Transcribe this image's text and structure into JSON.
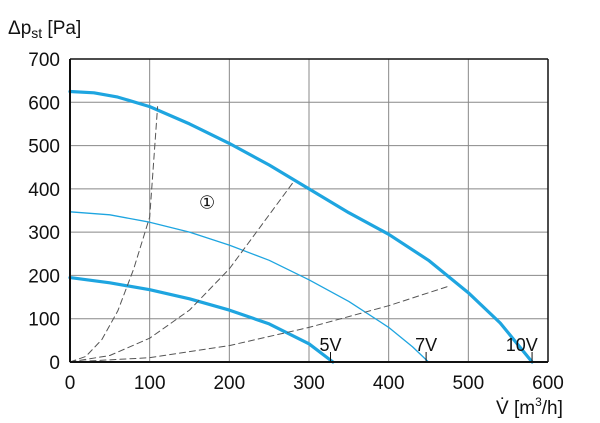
{
  "chart_data": {
    "type": "line",
    "ylabel": {
      "main": "Δp",
      "sub": "st",
      "unit": " [Pa]"
    },
    "xlabel": {
      "main": "V̇ [m",
      "sup": "3",
      "unit": "/h]"
    },
    "xlim": [
      0,
      600
    ],
    "ylim": [
      0,
      700
    ],
    "xticks": [
      0,
      100,
      200,
      300,
      400,
      500,
      600
    ],
    "yticks": [
      0,
      100,
      200,
      300,
      400,
      500,
      600,
      700
    ],
    "grid": true,
    "colors": {
      "fan_curve": "#1ea5e0",
      "system_curve": "#555555",
      "axis": "#111111",
      "grid": "#888888"
    },
    "series": [
      {
        "name": "10V",
        "style": "thick",
        "x": [
          0,
          30,
          60,
          100,
          150,
          200,
          250,
          300,
          350,
          400,
          450,
          500,
          540,
          580
        ],
        "y": [
          625,
          622,
          612,
          590,
          550,
          505,
          455,
          400,
          345,
          295,
          235,
          160,
          90,
          0
        ]
      },
      {
        "name": "",
        "style": "thin",
        "x": [
          0,
          50,
          100,
          150,
          200,
          250,
          300,
          350,
          400,
          430,
          450
        ],
        "y": [
          347,
          340,
          323,
          300,
          270,
          235,
          190,
          140,
          80,
          35,
          0
        ]
      },
      {
        "name": "",
        "style": "thick",
        "x": [
          0,
          50,
          100,
          150,
          200,
          250,
          300,
          330
        ],
        "y": [
          195,
          183,
          167,
          146,
          120,
          88,
          42,
          0
        ]
      },
      {
        "name": "",
        "style": "dashed",
        "x": [
          0,
          20,
          40,
          60,
          80,
          100,
          110
        ],
        "y": [
          0,
          13,
          52,
          118,
          215,
          335,
          590
        ]
      },
      {
        "name": "",
        "style": "dashed",
        "x": [
          0,
          50,
          100,
          150,
          200,
          250,
          280
        ],
        "y": [
          0,
          15,
          55,
          120,
          215,
          340,
          415
        ]
      },
      {
        "name": "",
        "style": "dashed",
        "x": [
          0,
          100,
          200,
          300,
          400,
          475
        ],
        "y": [
          0,
          10,
          38,
          80,
          130,
          175
        ]
      }
    ],
    "annotations": [
      {
        "text": "5V",
        "x": 327,
        "y": 25
      },
      {
        "text": "7V",
        "x": 447,
        "y": 25
      },
      {
        "text": "10V",
        "x": 567,
        "y": 25
      },
      {
        "text": "①",
        "x": 172,
        "y": 355
      }
    ]
  }
}
